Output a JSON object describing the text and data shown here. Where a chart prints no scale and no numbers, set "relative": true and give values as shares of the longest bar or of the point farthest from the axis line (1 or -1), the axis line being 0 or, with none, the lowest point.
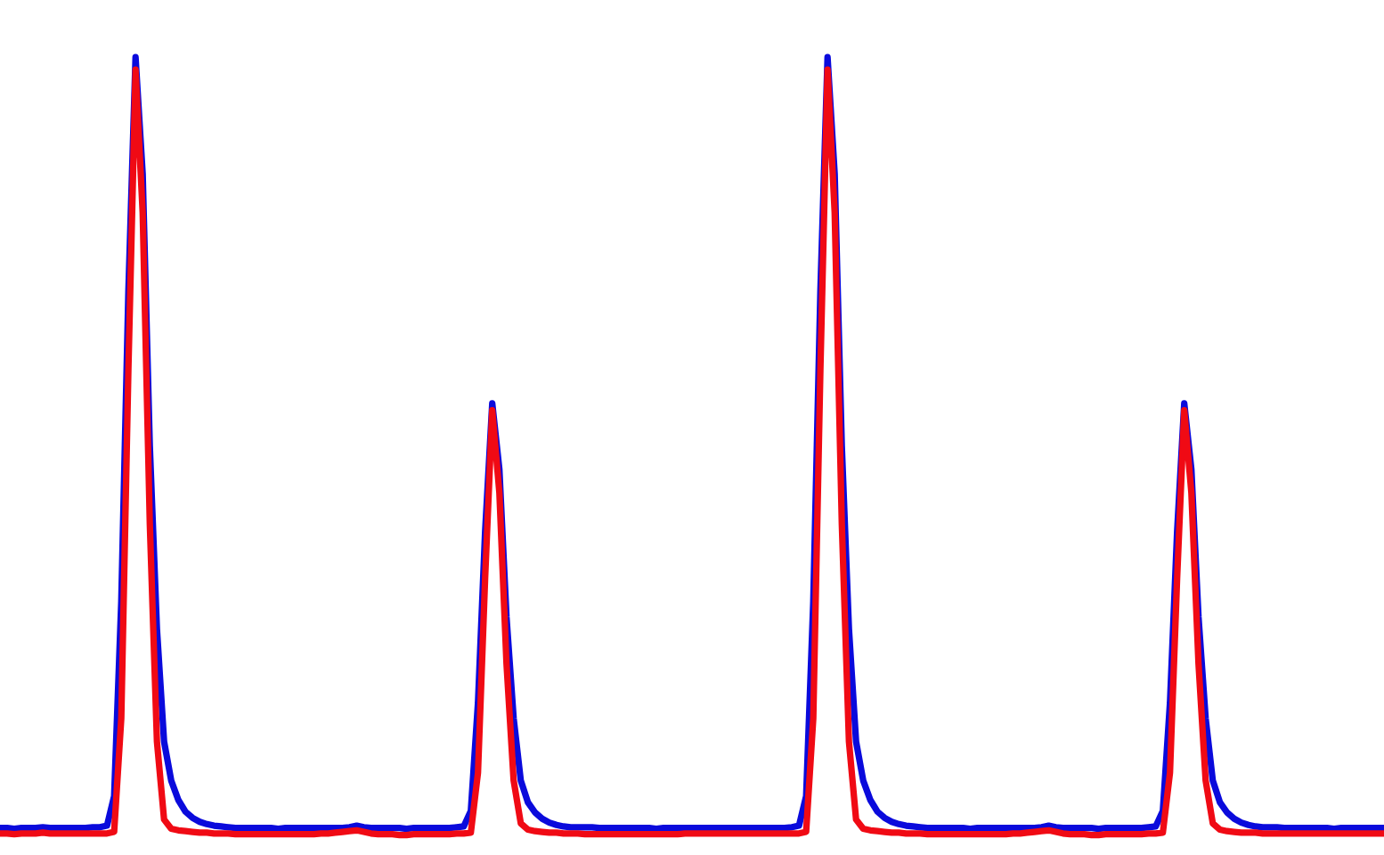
{
  "chart_data": {
    "type": "line",
    "relative": true,
    "marker": "none",
    "line_style": "solid",
    "categories": [
      null,
      null,
      null,
      null,
      null,
      null,
      null,
      null,
      null,
      null,
      null,
      null,
      null,
      null,
      null,
      null,
      null,
      null,
      null,
      null,
      null,
      null,
      null,
      null,
      null,
      null,
      null,
      null,
      null,
      null,
      null,
      null,
      null,
      null,
      null,
      null,
      null,
      null,
      null,
      null,
      null,
      null,
      null,
      null,
      null,
      null,
      null,
      null,
      null,
      null,
      null,
      null,
      null,
      null,
      null,
      null,
      null,
      null,
      null,
      null,
      null,
      null,
      null,
      null,
      null,
      null,
      null,
      null,
      null,
      null,
      null,
      null,
      null,
      null,
      null,
      null,
      null,
      null,
      null,
      null,
      null,
      null,
      null,
      null,
      null,
      null,
      null,
      null,
      null,
      null,
      null,
      null,
      null,
      null,
      null,
      null,
      null,
      null,
      null,
      null,
      null,
      null,
      null,
      null,
      null,
      null,
      null,
      null,
      null,
      null,
      null,
      null,
      null,
      null,
      null,
      null,
      null,
      null,
      null,
      null,
      null,
      null,
      null,
      null,
      null,
      null,
      null,
      null,
      null,
      null,
      null,
      null,
      null,
      null,
      null,
      null,
      null,
      null,
      null,
      null,
      null,
      null,
      null,
      null,
      null,
      null,
      null,
      null,
      null,
      null,
      null,
      null,
      null,
      null,
      null,
      null,
      null,
      null,
      null,
      null,
      null,
      null,
      null,
      null,
      null,
      null,
      null,
      null,
      null,
      null,
      null,
      null,
      null,
      null,
      null,
      null,
      null,
      null,
      null,
      null,
      null,
      null,
      null,
      null,
      null,
      null,
      null,
      null,
      null,
      null,
      null,
      null,
      null,
      null,
      null
    ],
    "series": [
      {
        "color": "#0a0adc",
        "values": [
          0.009,
          0.009,
          0.008,
          0.009,
          0.009,
          0.009,
          0.01,
          0.009,
          0.009,
          0.009,
          0.009,
          0.009,
          0.009,
          0.01,
          0.01,
          0.012,
          0.05,
          0.3,
          0.7,
          1.0,
          0.85,
          0.5,
          0.265,
          0.12,
          0.07,
          0.045,
          0.03,
          0.022,
          0.017,
          0.014,
          0.012,
          0.011,
          0.01,
          0.009,
          0.009,
          0.009,
          0.009,
          0.009,
          0.009,
          0.008,
          0.009,
          0.009,
          0.009,
          0.009,
          0.009,
          0.009,
          0.009,
          0.009,
          0.009,
          0.01,
          0.012,
          0.01,
          0.009,
          0.009,
          0.009,
          0.009,
          0.009,
          0.008,
          0.009,
          0.009,
          0.009,
          0.009,
          0.009,
          0.009,
          0.01,
          0.011,
          0.031,
          0.17,
          0.39,
          0.555,
          0.47,
          0.28,
          0.15,
          0.07,
          0.042,
          0.029,
          0.021,
          0.016,
          0.013,
          0.011,
          0.01,
          0.01,
          0.01,
          0.01,
          0.009,
          0.009,
          0.009,
          0.009,
          0.009,
          0.009,
          0.009,
          0.009,
          0.008,
          0.009,
          0.009,
          0.009,
          0.009,
          0.009,
          0.009,
          0.009,
          0.009,
          0.009,
          0.009,
          0.009,
          0.009,
          0.009,
          0.009,
          0.009,
          0.009,
          0.009,
          0.009,
          0.01,
          0.012,
          0.05,
          0.3,
          0.7,
          1.0,
          0.85,
          0.5,
          0.265,
          0.12,
          0.07,
          0.045,
          0.03,
          0.022,
          0.017,
          0.014,
          0.012,
          0.011,
          0.01,
          0.009,
          0.009,
          0.009,
          0.009,
          0.009,
          0.009,
          0.008,
          0.009,
          0.009,
          0.009,
          0.009,
          0.009,
          0.009,
          0.009,
          0.009,
          0.009,
          0.01,
          0.012,
          0.01,
          0.009,
          0.009,
          0.009,
          0.009,
          0.009,
          0.008,
          0.009,
          0.009,
          0.009,
          0.009,
          0.009,
          0.009,
          0.01,
          0.011,
          0.031,
          0.17,
          0.39,
          0.555,
          0.47,
          0.28,
          0.15,
          0.07,
          0.042,
          0.029,
          0.021,
          0.016,
          0.013,
          0.011,
          0.01,
          0.01,
          0.01,
          0.009,
          0.009,
          0.009,
          0.009,
          0.009,
          0.009,
          0.009,
          0.008,
          0.009,
          0.009,
          0.009,
          0.009,
          0.009,
          0.009,
          0.009
        ]
      },
      {
        "color": "#f00a14",
        "values": [
          0.002,
          0.002,
          0.001,
          0.002,
          0.002,
          0.002,
          0.003,
          0.002,
          0.002,
          0.002,
          0.002,
          0.002,
          0.002,
          0.002,
          0.002,
          0.002,
          0.004,
          0.15,
          0.6,
          0.984,
          0.8,
          0.4,
          0.12,
          0.02,
          0.008,
          0.006,
          0.005,
          0.004,
          0.003,
          0.003,
          0.002,
          0.002,
          0.002,
          0.001,
          0.001,
          0.001,
          0.001,
          0.001,
          0.001,
          0.001,
          0.001,
          0.001,
          0.001,
          0.001,
          0.001,
          0.002,
          0.002,
          0.003,
          0.004,
          0.005,
          0.006,
          0.004,
          0.002,
          0.001,
          0.001,
          0.001,
          0.0,
          0.0,
          0.001,
          0.001,
          0.001,
          0.001,
          0.001,
          0.001,
          0.002,
          0.002,
          0.003,
          0.08,
          0.33,
          0.546,
          0.44,
          0.22,
          0.07,
          0.015,
          0.007,
          0.005,
          0.004,
          0.003,
          0.003,
          0.002,
          0.002,
          0.002,
          0.001,
          0.001,
          0.001,
          0.001,
          0.001,
          0.001,
          0.001,
          0.001,
          0.001,
          0.001,
          0.001,
          0.001,
          0.001,
          0.001,
          0.002,
          0.002,
          0.002,
          0.002,
          0.002,
          0.002,
          0.002,
          0.002,
          0.002,
          0.002,
          0.002,
          0.002,
          0.002,
          0.002,
          0.002,
          0.002,
          0.002,
          0.004,
          0.15,
          0.6,
          0.984,
          0.8,
          0.4,
          0.12,
          0.02,
          0.008,
          0.006,
          0.005,
          0.004,
          0.003,
          0.003,
          0.002,
          0.002,
          0.002,
          0.001,
          0.001,
          0.001,
          0.001,
          0.001,
          0.001,
          0.001,
          0.001,
          0.001,
          0.001,
          0.001,
          0.001,
          0.002,
          0.002,
          0.003,
          0.004,
          0.005,
          0.006,
          0.004,
          0.002,
          0.001,
          0.001,
          0.001,
          0.0,
          0.0,
          0.001,
          0.001,
          0.001,
          0.001,
          0.001,
          0.001,
          0.002,
          0.002,
          0.003,
          0.08,
          0.33,
          0.546,
          0.44,
          0.22,
          0.07,
          0.015,
          0.007,
          0.005,
          0.004,
          0.003,
          0.003,
          0.003,
          0.002,
          0.002,
          0.002,
          0.002,
          0.002,
          0.002,
          0.002,
          0.002,
          0.002,
          0.002,
          0.002,
          0.002,
          0.002,
          0.002,
          0.002,
          0.002,
          0.002,
          0.002
        ]
      }
    ]
  }
}
